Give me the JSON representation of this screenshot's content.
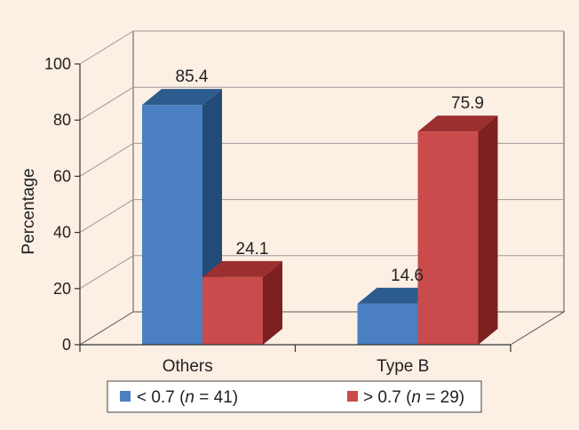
{
  "chart_data": {
    "type": "bar",
    "style": "3d-clustered-column",
    "categories": [
      "Others",
      "Type B"
    ],
    "series": [
      {
        "name": "< 0.7 (n = 41)",
        "values": [
          85.4,
          14.6
        ],
        "color": "#4a7fc1"
      },
      {
        "name": "> 0.7 (n = 29)",
        "values": [
          24.1,
          75.9
        ],
        "color": "#c94b4b"
      }
    ],
    "ylabel": "Percentage",
    "ylim": [
      0,
      100
    ],
    "yticks": [
      0,
      20,
      40,
      60,
      80,
      100
    ],
    "grid": true,
    "legend_position": "bottom"
  },
  "legend": {
    "items": [
      {
        "prefix": "< 0.7 (",
        "var": "n",
        "suffix": " = 41)"
      },
      {
        "prefix": "> 0.7 (",
        "var": "n",
        "suffix": " = 29)"
      }
    ]
  },
  "colors": {
    "background": "#fcefe4",
    "grid": "#9a9a9a",
    "blue_front": "#4a7fc1",
    "blue_top": "#2c5c8e",
    "blue_side": "#234a78",
    "red_front": "#c94b4b",
    "red_top": "#9c2f2f",
    "red_side": "#7e2020"
  }
}
